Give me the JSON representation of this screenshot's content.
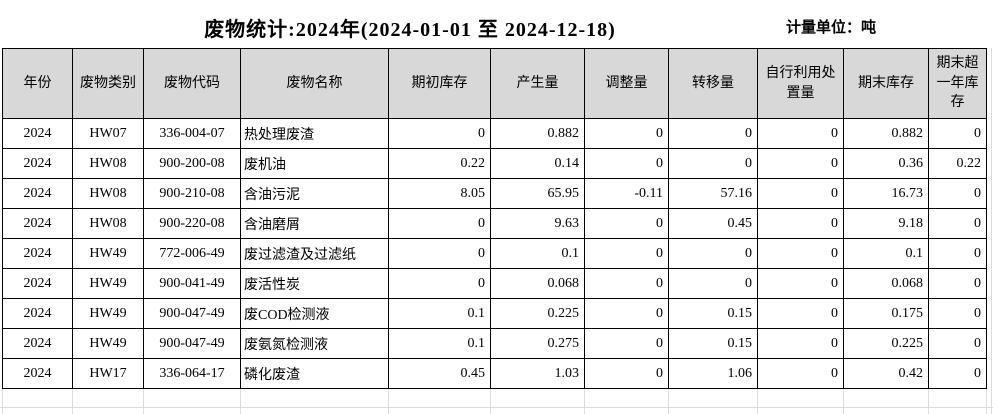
{
  "page": {
    "title": "废物统计:2024年(2024-01-01 至 2024-12-18)",
    "unit_label": "计量单位：吨"
  },
  "colors": {
    "header_bg": "#d8d8d8",
    "table_border": "#000000",
    "faint_grid": "#dcdcdc",
    "text": "#000000",
    "background": "#ffffff"
  },
  "table": {
    "columns": [
      {
        "key": "year",
        "label": "年份",
        "align": "c"
      },
      {
        "key": "category",
        "label": "废物类别",
        "align": "c"
      },
      {
        "key": "code",
        "label": "废物代码",
        "align": "c"
      },
      {
        "key": "name",
        "label": "废物名称",
        "align": "l"
      },
      {
        "key": "opening",
        "label": "期初库存",
        "align": "r"
      },
      {
        "key": "generated",
        "label": "产生量",
        "align": "r"
      },
      {
        "key": "adjustment",
        "label": "调整量",
        "align": "r"
      },
      {
        "key": "transfer",
        "label": "转移量",
        "align": "r"
      },
      {
        "key": "self_disposal",
        "label": "自行利用处置量",
        "align": "r"
      },
      {
        "key": "closing",
        "label": "期末库存",
        "align": "r"
      },
      {
        "key": "over_year",
        "label": "期末超一年库存",
        "align": "r"
      }
    ],
    "rows": [
      {
        "year": "2024",
        "category": "HW07",
        "code": "336-004-07",
        "name": "热处理废渣",
        "opening": "0",
        "generated": "0.882",
        "adjustment": "0",
        "transfer": "0",
        "self_disposal": "0",
        "closing": "0.882",
        "over_year": "0"
      },
      {
        "year": "2024",
        "category": "HW08",
        "code": "900-200-08",
        "name": "废机油",
        "opening": "0.22",
        "generated": "0.14",
        "adjustment": "0",
        "transfer": "0",
        "self_disposal": "0",
        "closing": "0.36",
        "over_year": "0.22"
      },
      {
        "year": "2024",
        "category": "HW08",
        "code": "900-210-08",
        "name": "含油污泥",
        "opening": "8.05",
        "generated": "65.95",
        "adjustment": "-0.11",
        "transfer": "57.16",
        "self_disposal": "0",
        "closing": "16.73",
        "over_year": "0"
      },
      {
        "year": "2024",
        "category": "HW08",
        "code": "900-220-08",
        "name": "含油磨屑",
        "opening": "0",
        "generated": "9.63",
        "adjustment": "0",
        "transfer": "0.45",
        "self_disposal": "0",
        "closing": "9.18",
        "over_year": "0"
      },
      {
        "year": "2024",
        "category": "HW49",
        "code": "772-006-49",
        "name": "废过滤渣及过滤纸",
        "opening": "0",
        "generated": "0.1",
        "adjustment": "0",
        "transfer": "0",
        "self_disposal": "0",
        "closing": "0.1",
        "over_year": "0"
      },
      {
        "year": "2024",
        "category": "HW49",
        "code": "900-041-49",
        "name": "废活性炭",
        "opening": "0",
        "generated": "0.068",
        "adjustment": "0",
        "transfer": "0",
        "self_disposal": "0",
        "closing": "0.068",
        "over_year": "0"
      },
      {
        "year": "2024",
        "category": "HW49",
        "code": "900-047-49",
        "name": "废COD检测液",
        "opening": "0.1",
        "generated": "0.225",
        "adjustment": "0",
        "transfer": "0.15",
        "self_disposal": "0",
        "closing": "0.175",
        "over_year": "0"
      },
      {
        "year": "2024",
        "category": "HW49",
        "code": "900-047-49",
        "name": "废氨氮检测液",
        "opening": "0.1",
        "generated": "0.275",
        "adjustment": "0",
        "transfer": "0.15",
        "self_disposal": "0",
        "closing": "0.225",
        "over_year": "0"
      },
      {
        "year": "2024",
        "category": "HW17",
        "code": "336-064-17",
        "name": "磷化废渣",
        "opening": "0.45",
        "generated": "1.03",
        "adjustment": "0",
        "transfer": "1.06",
        "self_disposal": "0",
        "closing": "0.42",
        "over_year": "0"
      }
    ]
  }
}
